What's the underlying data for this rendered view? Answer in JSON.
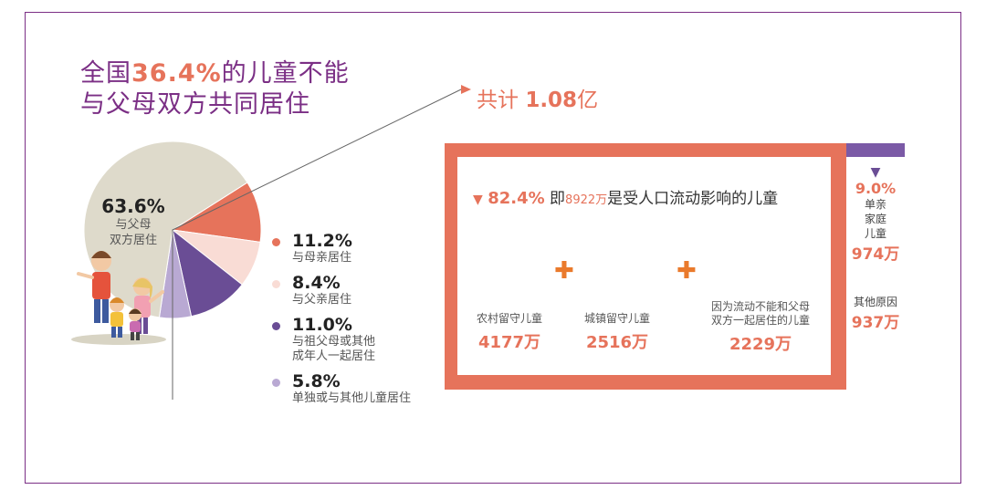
{
  "headline": {
    "line1_pre": "全国",
    "line1_hl": "36.4%",
    "line1_post": "的儿童不能",
    "line2": "与父母双方共同居住"
  },
  "chart_data": {
    "type": "pie",
    "slices": [
      {
        "label": "与父母双方居住",
        "value": 63.6,
        "pct_text": "63.6%",
        "color": "#dedacb"
      },
      {
        "label": "与母亲居住",
        "value": 11.2,
        "pct_text": "11.2%",
        "color": "#e6735b"
      },
      {
        "label": "与父亲居住",
        "value": 8.4,
        "pct_text": "8.4%",
        "color": "#f9dcd5"
      },
      {
        "label": "与祖父母或其他成年人一起居住",
        "value": 11.0,
        "pct_text": "11.0%",
        "color": "#6a4d95"
      },
      {
        "label": "单独或与其他儿童居住",
        "value": 5.8,
        "pct_text": "5.8%",
        "color": "#b9a9d3"
      }
    ]
  },
  "big_label": {
    "pct": "63.6%",
    "desc1": "与父母",
    "desc2": "双方居住"
  },
  "legend": [
    {
      "pct": "11.2%",
      "lines": [
        "与母亲居住"
      ]
    },
    {
      "pct": "8.4%",
      "lines": [
        "与父亲居住"
      ]
    },
    {
      "pct": "11.0%",
      "lines": [
        "与祖父母或其他",
        "成年人一起居住"
      ]
    },
    {
      "pct": "5.8%",
      "lines": [
        "单独或与其他儿童居住"
      ]
    }
  ],
  "total": {
    "prefix": "共计 ",
    "value": "1.08",
    "unit": "亿"
  },
  "box": {
    "title_tri": "▼",
    "title_pct": "82.4%",
    "title_mid": " 即",
    "title_num": "8922万",
    "title_post": "是受人口流动影响的儿童",
    "categories": [
      {
        "label1": "农村留守儿童",
        "label2": "",
        "value": "4177万"
      },
      {
        "label1": "城镇留守儿童",
        "label2": "",
        "value": "2516万"
      },
      {
        "label1": "因为流动不能和父母",
        "label2": "双方一起居住的儿童",
        "value": "2229万"
      }
    ],
    "plus": "✚"
  },
  "side": {
    "tri": "▼",
    "pct": "9.0%",
    "single_lines": [
      "单亲",
      "家庭",
      "儿童"
    ],
    "single_value": "974万",
    "other_label": "其他原因",
    "other_value": "937万"
  },
  "colors": {
    "accent": "#e6735b",
    "purple": "#7b2f85",
    "violet": "#6a4d95"
  }
}
